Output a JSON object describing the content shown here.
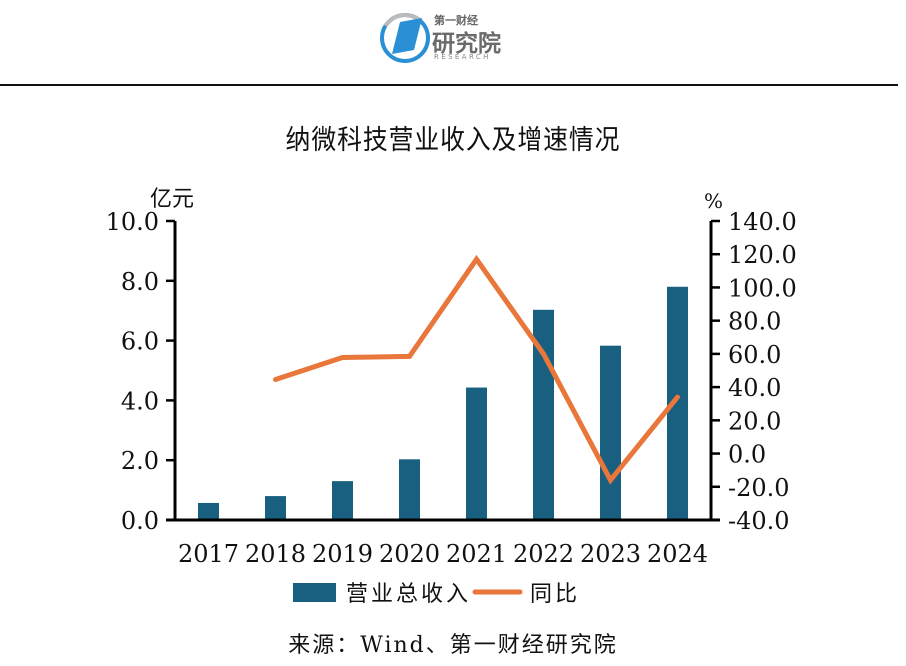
{
  "header": {
    "logo_small": "第一财经",
    "logo_big": "研究院",
    "logo_en": "RESEARCH"
  },
  "colors": {
    "bar": "#185f80",
    "line": "#e9763a",
    "logo_blue": "#2b8fd6"
  },
  "chart_data": {
    "type": "bar",
    "title": "纳微科技营业收入及增速情况",
    "categories": [
      "2017",
      "2018",
      "2019",
      "2020",
      "2021",
      "2022",
      "2023",
      "2024"
    ],
    "y_left": {
      "label": "亿元",
      "ylim": [
        0,
        10
      ],
      "ticks": [
        "0.0",
        "2.0",
        "4.0",
        "6.0",
        "8.0",
        "10.0"
      ]
    },
    "y_right": {
      "label": "%",
      "ylim": [
        -40,
        140
      ],
      "ticks": [
        "-40.0",
        "-20.0",
        "0.0",
        "20.0",
        "40.0",
        "60.0",
        "80.0",
        "100.0",
        "120.0",
        "140.0"
      ]
    },
    "series": [
      {
        "name": "营业总收入",
        "type": "bar",
        "axis": "left",
        "values": [
          0.57,
          0.8,
          1.3,
          2.03,
          4.43,
          7.03,
          5.83,
          7.8
        ]
      },
      {
        "name": "同比",
        "type": "line",
        "axis": "right",
        "values": [
          null,
          44.6,
          57.8,
          58.5,
          117.0,
          60.0,
          -16.0,
          34.0
        ]
      }
    ],
    "legend": {
      "position": "bottom",
      "items": [
        "营业总收入",
        "同比"
      ]
    },
    "grid": false
  },
  "source": "来源：Wind、第一财经研究院"
}
